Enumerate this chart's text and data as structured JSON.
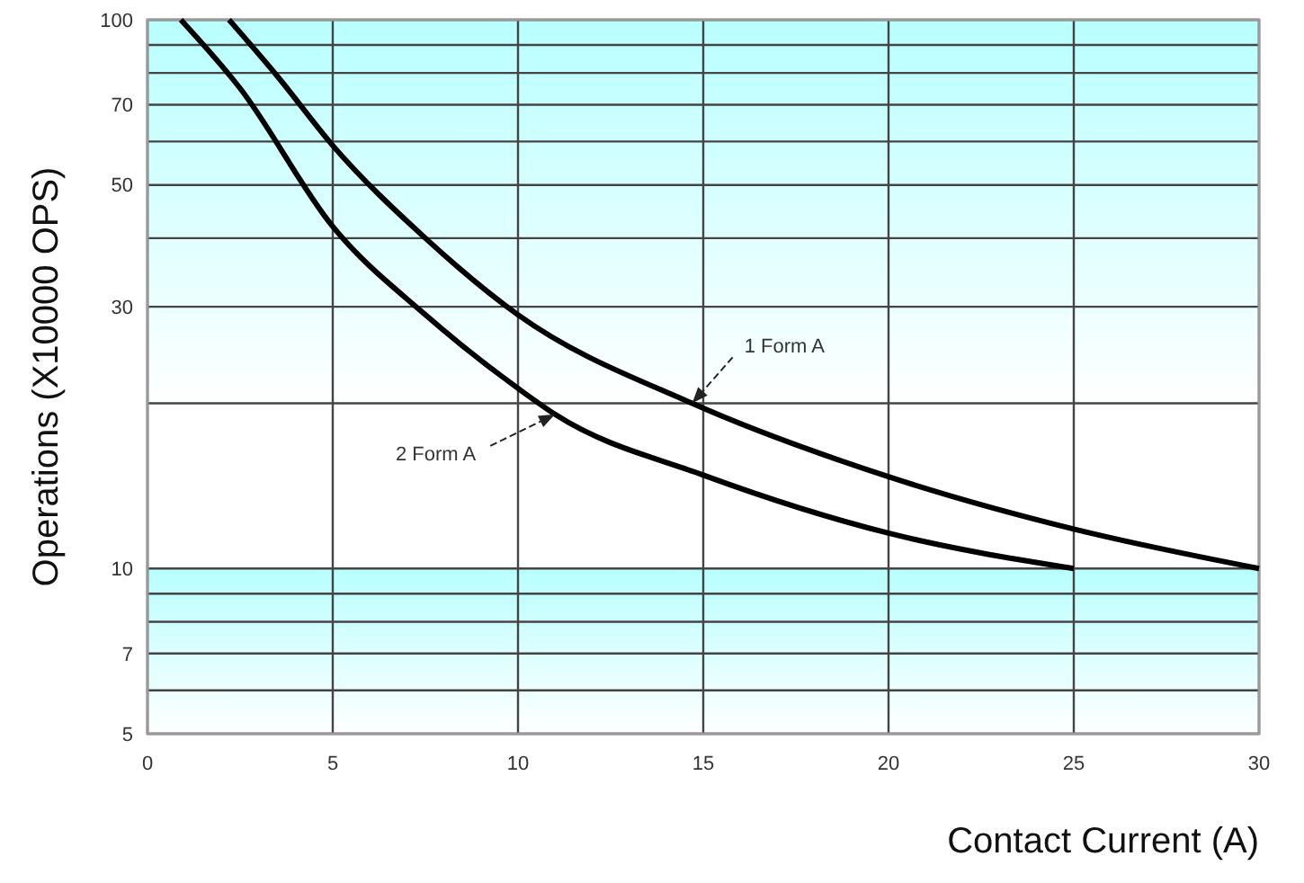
{
  "chart_data": {
    "type": "line",
    "xlabel": "Contact Current (A)",
    "ylabel": "Operations (X10000 OPS)",
    "log": "y",
    "grid": true,
    "line_style": "solid",
    "marker": "none",
    "xlim": [
      0,
      30
    ],
    "xticks": [
      0,
      5,
      10,
      15,
      20,
      25,
      30
    ],
    "ylim": [
      5,
      100
    ],
    "yticks": [
      5,
      {
        "value": 6,
        "label": null
      },
      7,
      {
        "value": 8,
        "label": null
      },
      {
        "value": 9,
        "label": null
      },
      10,
      {
        "value": 20,
        "label": null
      },
      30,
      {
        "value": 40,
        "label": null
      },
      50,
      {
        "value": 60,
        "label": null
      },
      70,
      {
        "value": 80,
        "label": null
      },
      {
        "value": 90,
        "label": null
      },
      100
    ],
    "bands": [
      {
        "axis": "y",
        "from": 20,
        "to": 100,
        "color": "#b8ffff"
      },
      {
        "axis": "y",
        "from": 5,
        "to": 10,
        "color": "#b8ffff"
      }
    ],
    "series": [
      {
        "color": "#000000",
        "x": [
          2.2,
          3.5,
          5,
          7.5,
          10,
          14.7,
          20,
          25,
          30
        ],
        "values": [
          100,
          79,
          59,
          40,
          29,
          20,
          14.7,
          11.8,
          10
        ]
      },
      {
        "color": "#000000",
        "x": [
          0.9,
          2.5,
          5,
          7.5,
          10,
          11,
          15,
          20,
          25
        ],
        "values": [
          100,
          75,
          42,
          29,
          21.3,
          19.1,
          14.8,
          11.6,
          10
        ]
      }
    ],
    "annotations": [
      {
        "text": "1 Form A",
        "x": 14.7,
        "y": 20
      },
      {
        "text": "2 Form A",
        "x": 11,
        "y": 19.1
      }
    ]
  }
}
